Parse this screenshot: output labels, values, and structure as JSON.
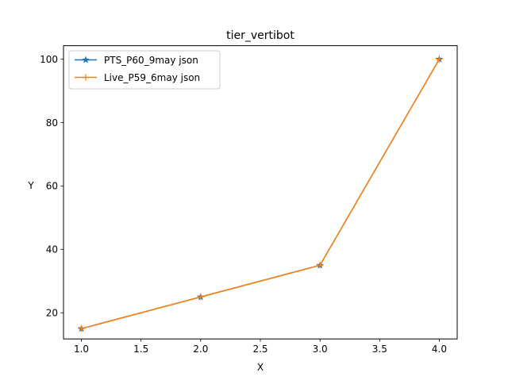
{
  "chart_data": {
    "type": "line",
    "title": "tier_vertibot",
    "xlabel": "X",
    "ylabel": "Y",
    "x": [
      1.0,
      2.0,
      3.0,
      4.0
    ],
    "xlim": [
      0.85,
      4.15
    ],
    "ylim": [
      11.75,
      104.25
    ],
    "xticks": [
      1.0,
      1.5,
      2.0,
      2.5,
      3.0,
      3.5,
      4.0
    ],
    "xtick_labels": [
      "1.0",
      "1.5",
      "2.0",
      "2.5",
      "3.0",
      "3.5",
      "4.0"
    ],
    "yticks": [
      20,
      40,
      60,
      80,
      100
    ],
    "ytick_labels": [
      "20",
      "40",
      "60",
      "80",
      "100"
    ],
    "grid": false,
    "legend_position": "top-left",
    "series": [
      {
        "name": "PTS_P60_9may json",
        "values": [
          15,
          25,
          35,
          100
        ],
        "color": "#1f77b4",
        "marker": "star"
      },
      {
        "name": "Live_P59_6may json",
        "values": [
          15,
          25,
          35,
          100
        ],
        "color": "#ff7f0e",
        "marker": "plus"
      }
    ]
  }
}
